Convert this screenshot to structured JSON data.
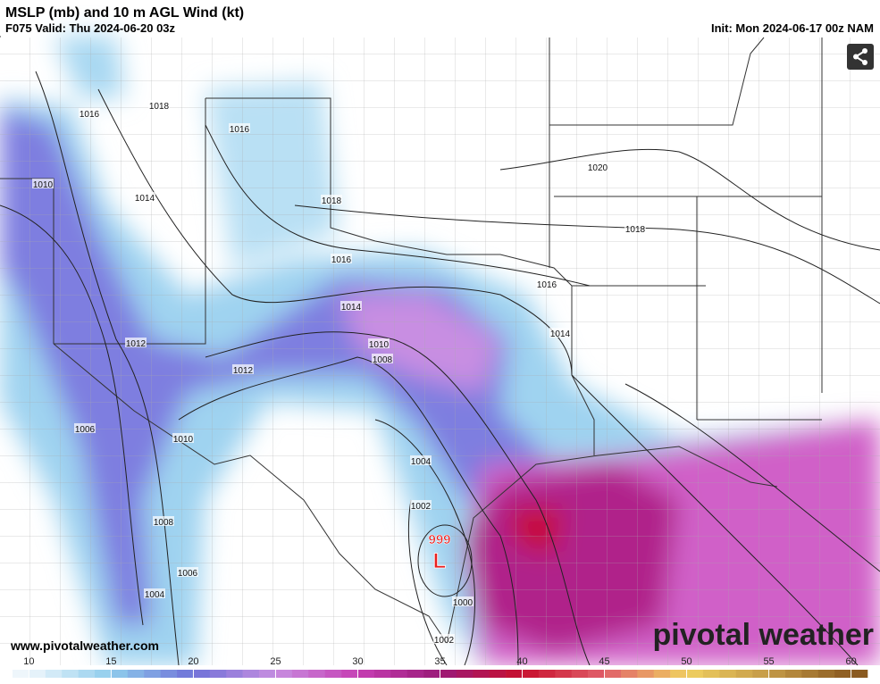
{
  "header": {
    "title": "MSLP (mb) and 10 m AGL Wind (kt)",
    "valid": "F075 Valid: Thu 2024-06-20 03z",
    "init": "Init: Mon 2024-06-17 00z NAM"
  },
  "map": {
    "isobar_labels": [
      1016,
      1018,
      1016,
      1010,
      1014,
      1018,
      1020,
      1018,
      1016,
      1016,
      1014,
      1014,
      1012,
      1010,
      1008,
      1012,
      1006,
      1010,
      1004,
      1002,
      1008,
      1006,
      1004,
      1000,
      1002
    ],
    "low": {
      "pressure": 999,
      "label": "L"
    }
  },
  "colorbar": {
    "lim": [
      9,
      61
    ],
    "ticks": [
      10,
      15,
      20,
      25,
      30,
      35,
      40,
      45,
      50,
      55,
      60
    ],
    "colors": [
      "#eef6fb",
      "#8fcdec",
      "#6f72d8",
      "#c78ee0",
      "#c63fb4",
      "#9a1a78",
      "#c8102e",
      "#e0606a",
      "#f0d060",
      "#c49a48",
      "#8a5a20"
    ]
  },
  "footer": {
    "url": "www.pivotalweather.com",
    "brand": "pivotal weather"
  }
}
